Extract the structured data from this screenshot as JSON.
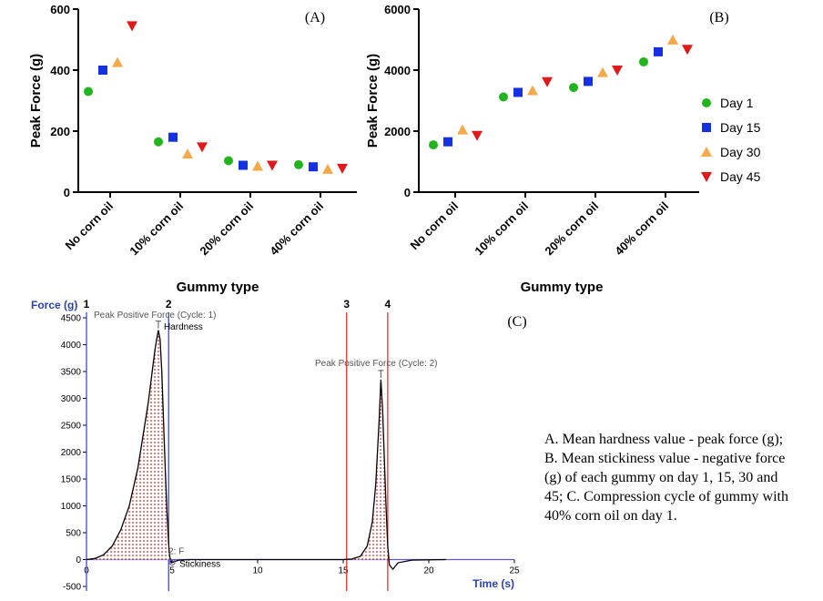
{
  "caption": "A. Mean hardness value - peak force (g);  B. Mean stickiness value - negative force (g) of each gummy on day 1, 15, 30 and 45; C. Compression cycle of gummy with 40% corn oil on day 1.",
  "colors": {
    "day1": "#22b41e",
    "day15": "#1530e0",
    "day30": "#f5a94a",
    "day45": "#e01a1a",
    "vline_blue": "#3a4bd4",
    "vline_red": "#e83030",
    "curve": "#000000",
    "fill": "#d42a2a"
  },
  "legend": [
    {
      "label": "Day 1",
      "marker": "circle",
      "color": "#22b41e"
    },
    {
      "label": "Day 15",
      "marker": "square",
      "color": "#1530e0"
    },
    {
      "label": "Day 30",
      "marker": "triangle-up",
      "color": "#f5a94a"
    },
    {
      "label": "Day 45",
      "marker": "triangle-down",
      "color": "#e01a1a"
    }
  ],
  "chart_data": [
    {
      "panel": "(A)",
      "type": "scatter",
      "ylabel": "Peak  Force (g)",
      "xlabel": "Gummy type",
      "ylim": [
        0,
        600
      ],
      "yticks": [
        0,
        200,
        400,
        600
      ],
      "categories": [
        "No corn oil",
        "10% corn oil",
        "20% corn oil",
        "40% corn oil"
      ],
      "series": [
        {
          "name": "Day 1",
          "values": [
            330,
            165,
            103,
            90
          ]
        },
        {
          "name": "Day 15",
          "values": [
            400,
            180,
            88,
            83
          ]
        },
        {
          "name": "Day 30",
          "values": [
            425,
            125,
            85,
            75
          ]
        },
        {
          "name": "Day 45",
          "values": [
            545,
            148,
            88,
            78
          ]
        }
      ]
    },
    {
      "panel": "(B)",
      "type": "scatter",
      "ylabel": "Peak  Force (g)",
      "xlabel": "Gummy type",
      "ylim": [
        0,
        6000
      ],
      "yticks": [
        0,
        2000,
        4000,
        6000
      ],
      "categories": [
        "No corn oil",
        "10% corn oil",
        "20% corn oil",
        "40% corn oil"
      ],
      "legend_position": "right",
      "series": [
        {
          "name": "Day 1",
          "values": [
            1550,
            3120,
            3430,
            4270
          ]
        },
        {
          "name": "Day 15",
          "values": [
            1650,
            3270,
            3630,
            4600
          ]
        },
        {
          "name": "Day 30",
          "values": [
            2040,
            3330,
            3920,
            4990
          ]
        },
        {
          "name": "Day 45",
          "values": [
            1860,
            3620,
            4000,
            4680
          ]
        }
      ]
    },
    {
      "panel": "(C)",
      "type": "line",
      "ylabel": "Force (g)",
      "xlabel": "Time (s)",
      "xlim": [
        0,
        25
      ],
      "ylim": [
        -500,
        4500
      ],
      "xticks": [
        0,
        5,
        10,
        15,
        20,
        25
      ],
      "yticks": [
        -500,
        0,
        500,
        1000,
        1500,
        2000,
        2500,
        3000,
        3500,
        4000,
        4500
      ],
      "markers": [
        {
          "label": "1",
          "x": 0,
          "color": "blue"
        },
        {
          "label": "2",
          "x": 4.8,
          "color": "blue"
        },
        {
          "label": "3",
          "x": 15.2,
          "color": "red"
        },
        {
          "label": "4",
          "x": 17.6,
          "color": "red"
        }
      ],
      "annotations": [
        {
          "text": "Peak Positive Force (Cycle: 1)",
          "x": 4.2,
          "y": 4270
        },
        {
          "text": "Hardness",
          "x": 4.2,
          "y": 4270
        },
        {
          "text": "Peak Positive Force (Cycle: 2)",
          "x": 17.2,
          "y": 3350
        },
        {
          "text": "2: F",
          "x": 4.9,
          "y": 0
        },
        {
          "text": "Stickiness",
          "x": 4.9,
          "y": -60
        }
      ],
      "series": [
        {
          "name": "",
          "x": [
            0,
            0.5,
            1,
            1.5,
            2,
            2.5,
            3,
            3.3,
            3.6,
            3.8,
            4.0,
            4.1,
            4.2,
            4.3,
            4.4,
            4.5,
            4.6,
            4.7,
            4.8,
            4.85,
            4.95,
            5.1,
            5.4,
            6,
            10,
            15,
            15.5,
            16,
            16.4,
            16.7,
            16.9,
            17.0,
            17.1,
            17.2,
            17.3,
            17.4,
            17.5,
            17.6,
            17.7,
            17.9,
            18.2,
            19,
            21
          ],
          "y": [
            0,
            20,
            90,
            250,
            550,
            1000,
            1700,
            2300,
            2900,
            3400,
            3900,
            4100,
            4270,
            4100,
            3500,
            2600,
            1700,
            900,
            300,
            80,
            -60,
            -40,
            -10,
            0,
            0,
            0,
            10,
            60,
            250,
            700,
            1400,
            2000,
            2600,
            3350,
            2800,
            1900,
            1000,
            250,
            -100,
            -180,
            -60,
            -10,
            0
          ]
        }
      ]
    }
  ]
}
